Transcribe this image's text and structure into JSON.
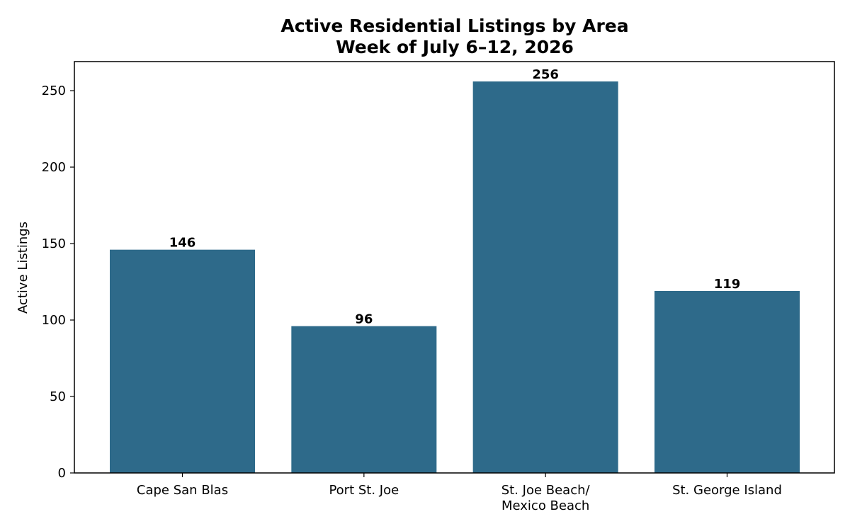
{
  "chart_data": {
    "type": "bar",
    "title": [
      "Active Residential Listings by Area",
      "Week of July 6–12, 2026"
    ],
    "xlabel": "",
    "ylabel": "Active Listings",
    "categories": [
      [
        "Cape San Blas"
      ],
      [
        "Port St. Joe"
      ],
      [
        "St. Joe Beach/",
        "Mexico Beach"
      ],
      [
        "St. George Island"
      ]
    ],
    "values": [
      146,
      96,
      256,
      119
    ],
    "data_labels": [
      "146",
      "96",
      "256",
      "119"
    ],
    "ylim": [
      0,
      269
    ],
    "yticks": [
      0,
      50,
      100,
      150,
      200,
      250
    ],
    "grid": false,
    "legend": null,
    "colors": {
      "bar": "#2e6a8a",
      "axis": "#000000",
      "background": "#ffffff"
    }
  }
}
